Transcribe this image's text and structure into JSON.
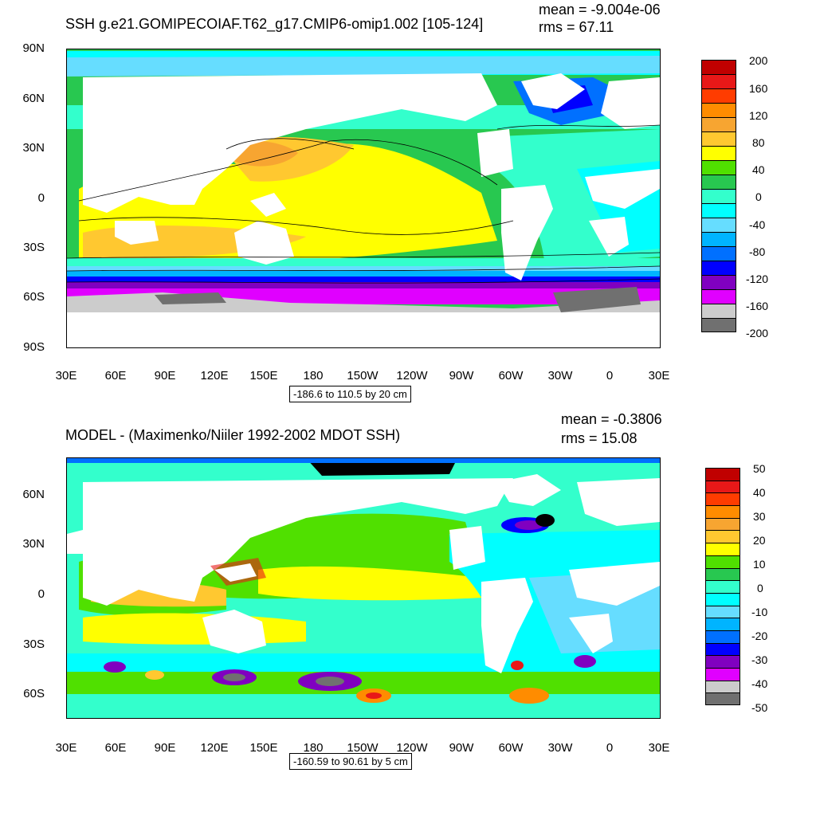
{
  "chart_data": [
    {
      "type": "heatmap",
      "title": "SSH g.e21.GOMIPECOIAF.T62_g17.CMIP6-omip1.002 [105-124]",
      "mean_label": "mean = -9.004e-06",
      "rms_label": "rms = 67.11",
      "contour_info": "-186.6 to 110.5 by 20 cm",
      "y_ticks": [
        "90N",
        "60N",
        "30N",
        "0",
        "30S",
        "60S",
        "90S"
      ],
      "x_ticks": [
        "30E",
        "60E",
        "90E",
        "120E",
        "150E",
        "180",
        "150W",
        "120W",
        "90W",
        "60W",
        "30W",
        "0",
        "30E"
      ],
      "colorbar_labels": [
        "200",
        "160",
        "120",
        "80",
        "40",
        "0",
        "-40",
        "-80",
        "-120",
        "-160",
        "-200"
      ],
      "colorbar_colors": [
        "#c00000",
        "#e81818",
        "#ff3c00",
        "#ff8c00",
        "#f7a531",
        "#ffc830",
        "#ffff00",
        "#50e000",
        "#28c850",
        "#33ffcc",
        "#00ffff",
        "#66ddff",
        "#00b4ff",
        "#0070ff",
        "#0000ff",
        "#8000c0",
        "#e000ff",
        "#cccccc",
        "#707070"
      ]
    },
    {
      "type": "heatmap",
      "title": "MODEL - (Maximenko/Niiler 1992-2002 MDOT SSH)",
      "mean_label": "mean = -0.3806",
      "rms_label": "rms = 15.08",
      "contour_info": "-160.59 to 90.61 by 5 cm",
      "y_ticks": [
        "60N",
        "30N",
        "0",
        "30S",
        "60S"
      ],
      "x_ticks": [
        "30E",
        "60E",
        "90E",
        "120E",
        "150E",
        "180",
        "150W",
        "120W",
        "90W",
        "60W",
        "30W",
        "0",
        "30E"
      ],
      "colorbar_labels": [
        "50",
        "40",
        "30",
        "20",
        "10",
        "0",
        "-10",
        "-20",
        "-30",
        "-40",
        "-50"
      ],
      "colorbar_colors": [
        "#c00000",
        "#e81818",
        "#ff3c00",
        "#ff8c00",
        "#f7a531",
        "#ffc830",
        "#ffff00",
        "#50e000",
        "#28c850",
        "#33ffcc",
        "#00ffff",
        "#66ddff",
        "#00b4ff",
        "#0070ff",
        "#0000ff",
        "#8000c0",
        "#e000ff",
        "#cccccc",
        "#707070"
      ]
    }
  ]
}
